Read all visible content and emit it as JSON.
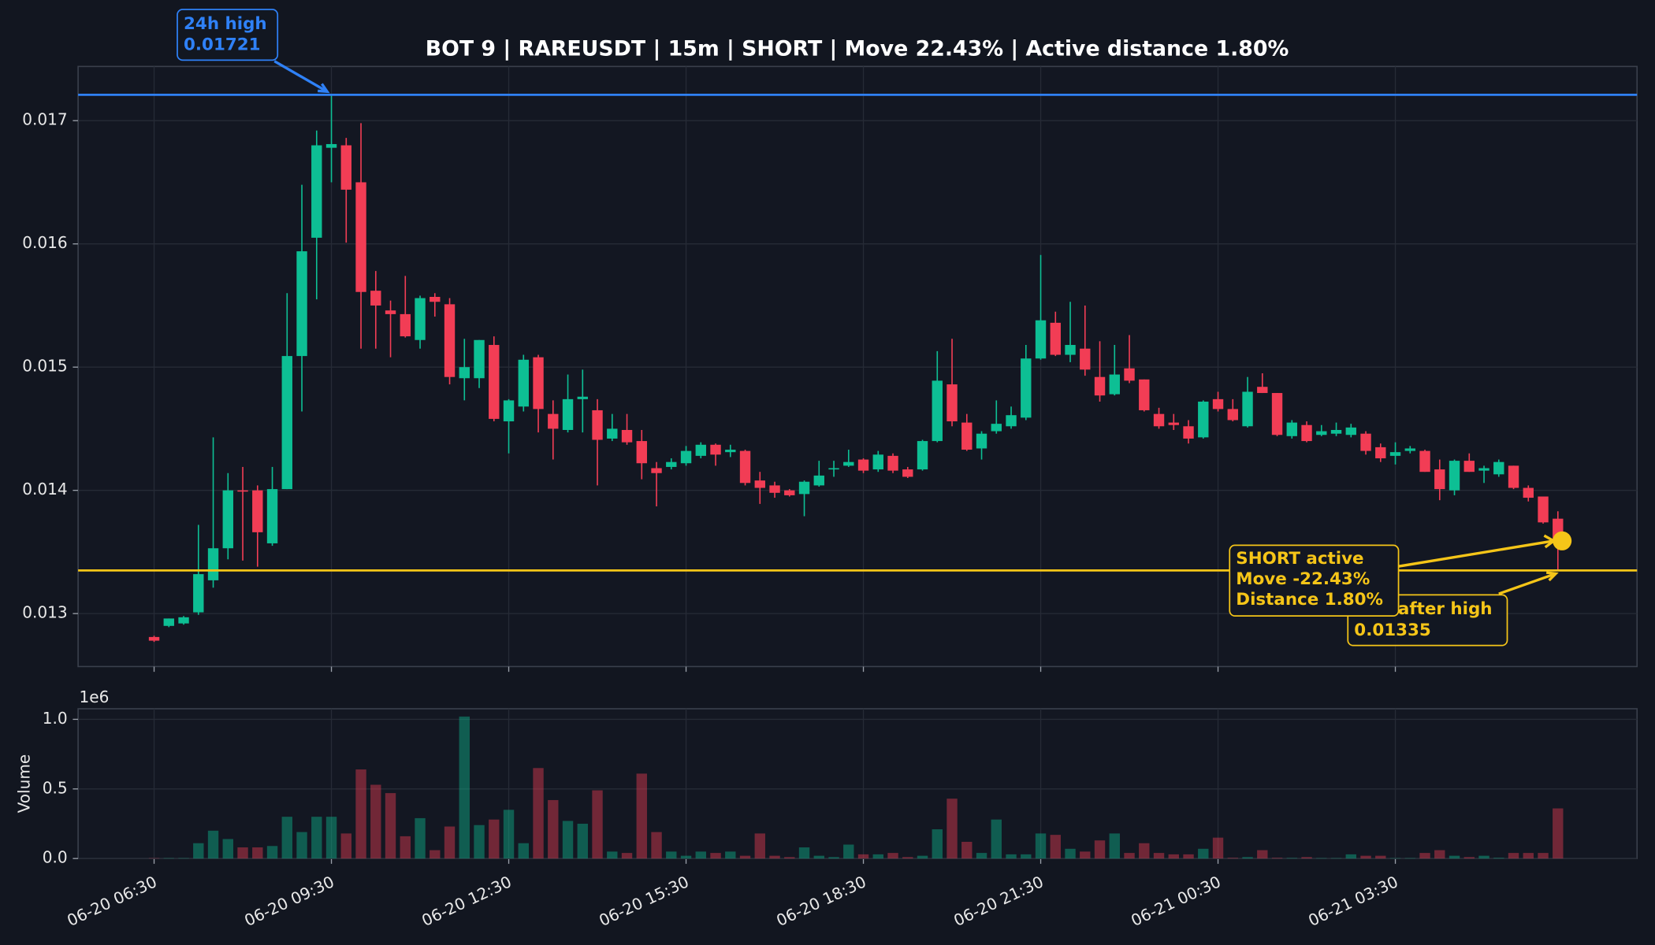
{
  "chart_data": [
    {
      "type": "candlestick",
      "title": "BOT 9 | RAREUSDT | 15m | SHORT | Move 22.43% | Active distance 1.80%",
      "open": [
        0.01281,
        0.0129,
        0.01292,
        0.01301,
        0.01327,
        0.01353,
        0.014,
        0.014,
        0.01357,
        0.01401,
        0.01509,
        0.01605,
        0.01678,
        0.0168,
        0.0165,
        0.01562,
        0.01546,
        0.01543,
        0.01522,
        0.01557,
        0.01551,
        0.01491,
        0.01491,
        0.01518,
        0.01456,
        0.01468,
        0.01508,
        0.01462,
        0.01449,
        0.01474,
        0.01465,
        0.01442,
        0.01449,
        0.0144,
        0.01418,
        0.01419,
        0.01422,
        0.01428,
        0.01437,
        0.01431,
        0.01432,
        0.01408,
        0.01404,
        0.014,
        0.01397,
        0.01404,
        0.01417,
        0.0142,
        0.01425,
        0.01417,
        0.01428,
        0.01417,
        0.01417,
        0.0144,
        0.01486,
        0.01455,
        0.01434,
        0.01448,
        0.01452,
        0.01459,
        0.01507,
        0.01536,
        0.0151,
        0.01515,
        0.01492,
        0.01478,
        0.01499,
        0.0149,
        0.01462,
        0.01455,
        0.01452,
        0.01443,
        0.01474,
        0.01466,
        0.01452,
        0.01484,
        0.01479,
        0.01444,
        0.01453,
        0.01445,
        0.01446,
        0.01445,
        0.01446,
        0.01435,
        0.01428,
        0.01432,
        0.01432,
        0.01417,
        0.014,
        0.01424,
        0.01416,
        0.01413,
        0.0142,
        0.01402,
        0.01395,
        0.01377
      ],
      "high": [
        0.01282,
        0.01296,
        0.01298,
        0.01372,
        0.01443,
        0.01414,
        0.01419,
        0.01404,
        0.01419,
        0.0156,
        0.01648,
        0.01692,
        0.01721,
        0.01686,
        0.01698,
        0.01578,
        0.01554,
        0.01574,
        0.01558,
        0.0156,
        0.01556,
        0.01523,
        0.01522,
        0.01525,
        0.01474,
        0.0151,
        0.0151,
        0.01473,
        0.01494,
        0.01498,
        0.01474,
        0.01462,
        0.01462,
        0.01449,
        0.01423,
        0.01426,
        0.01436,
        0.01439,
        0.01438,
        0.01437,
        0.01433,
        0.01415,
        0.01407,
        0.01401,
        0.01408,
        0.01424,
        0.01424,
        0.01433,
        0.01426,
        0.01432,
        0.0143,
        0.01419,
        0.01441,
        0.01513,
        0.01523,
        0.01462,
        0.01448,
        0.01473,
        0.01468,
        0.01518,
        0.01591,
        0.01545,
        0.01553,
        0.0155,
        0.01521,
        0.01518,
        0.01526,
        0.0149,
        0.01467,
        0.01462,
        0.01457,
        0.01473,
        0.0148,
        0.01474,
        0.01492,
        0.01495,
        0.01479,
        0.01457,
        0.01456,
        0.01453,
        0.01455,
        0.01454,
        0.01448,
        0.01438,
        0.01439,
        0.01436,
        0.01433,
        0.01425,
        0.01425,
        0.0143,
        0.0142,
        0.01425,
        0.0142,
        0.01404,
        0.01395,
        0.01383
      ],
      "low": [
        0.01277,
        0.01289,
        0.01291,
        0.01299,
        0.01321,
        0.01344,
        0.01343,
        0.01338,
        0.01355,
        0.01401,
        0.01464,
        0.01555,
        0.0165,
        0.01601,
        0.01515,
        0.01515,
        0.01508,
        0.01524,
        0.01515,
        0.01541,
        0.01486,
        0.01473,
        0.01483,
        0.01456,
        0.0143,
        0.01464,
        0.01447,
        0.01425,
        0.01447,
        0.01447,
        0.01404,
        0.0144,
        0.01437,
        0.01409,
        0.01387,
        0.01417,
        0.0142,
        0.01426,
        0.0142,
        0.01427,
        0.01404,
        0.01389,
        0.01394,
        0.01395,
        0.01379,
        0.01403,
        0.01411,
        0.01419,
        0.01414,
        0.01415,
        0.01414,
        0.0141,
        0.01416,
        0.01439,
        0.01452,
        0.01432,
        0.01425,
        0.01446,
        0.0145,
        0.01457,
        0.01506,
        0.01509,
        0.01504,
        0.01493,
        0.01472,
        0.01477,
        0.01487,
        0.01464,
        0.0145,
        0.01449,
        0.01438,
        0.01442,
        0.01464,
        0.01456,
        0.01451,
        0.01479,
        0.01444,
        0.01442,
        0.01439,
        0.01444,
        0.01444,
        0.01443,
        0.01429,
        0.01423,
        0.01421,
        0.0143,
        0.01415,
        0.01392,
        0.01396,
        0.01415,
        0.01406,
        0.01411,
        0.01401,
        0.01391,
        0.01373,
        0.01335
      ],
      "close": [
        0.01278,
        0.01296,
        0.01297,
        0.01332,
        0.01353,
        0.014,
        0.01399,
        0.01366,
        0.01401,
        0.01509,
        0.01594,
        0.0168,
        0.01681,
        0.01644,
        0.01561,
        0.0155,
        0.01543,
        0.01525,
        0.01556,
        0.01553,
        0.01492,
        0.015,
        0.01522,
        0.01458,
        0.01473,
        0.01506,
        0.01466,
        0.0145,
        0.01474,
        0.01476,
        0.01441,
        0.0145,
        0.01439,
        0.01422,
        0.01414,
        0.01423,
        0.01432,
        0.01437,
        0.01429,
        0.01433,
        0.01406,
        0.01402,
        0.01398,
        0.01396,
        0.01407,
        0.01412,
        0.01418,
        0.01423,
        0.01416,
        0.01429,
        0.01416,
        0.01411,
        0.0144,
        0.01489,
        0.01456,
        0.01433,
        0.01446,
        0.01454,
        0.01461,
        0.01507,
        0.01538,
        0.0151,
        0.01518,
        0.01498,
        0.01477,
        0.01494,
        0.01489,
        0.01465,
        0.01452,
        0.01453,
        0.01442,
        0.01472,
        0.01466,
        0.01457,
        0.0148,
        0.01479,
        0.01445,
        0.01455,
        0.0144,
        0.01448,
        0.01449,
        0.01451,
        0.01432,
        0.01426,
        0.01431,
        0.01434,
        0.01415,
        0.01401,
        0.01424,
        0.01415,
        0.01418,
        0.01423,
        0.01402,
        0.01394,
        0.01374,
        0.01359
      ],
      "up_color": "#0dbf94",
      "down_color": "#f23d55",
      "ylim": [
        0.01257,
        0.01744
      ],
      "yticks": [
        0.013,
        0.014,
        0.015,
        0.016,
        0.017
      ],
      "grid": true,
      "reference_lines": [
        {
          "name": "24h high",
          "value": 0.01721,
          "color": "#2f81f7"
        },
        {
          "name": "Low after high",
          "value": 0.01335,
          "color": "#f5c518"
        }
      ],
      "current_price": 0.01359,
      "current_color": "#f5c518",
      "status_box": [
        "SHORT active",
        "Move -22.43%",
        "Distance 1.80%"
      ]
    },
    {
      "type": "bar",
      "ylabel": "Volume",
      "offset_label": "1e6",
      "categories": [
        "06-20 06:30",
        null,
        null,
        null,
        null,
        null,
        null,
        null,
        null,
        null,
        null,
        null,
        "06-20 09:30",
        null,
        null,
        null,
        null,
        null,
        null,
        null,
        null,
        null,
        null,
        null,
        "06-20 12:30",
        null,
        null,
        null,
        null,
        null,
        null,
        null,
        null,
        null,
        null,
        null,
        "06-20 15:30",
        null,
        null,
        null,
        null,
        null,
        null,
        null,
        null,
        null,
        null,
        null,
        "06-20 18:30",
        null,
        null,
        null,
        null,
        null,
        null,
        null,
        null,
        null,
        null,
        null,
        "06-20 21:30",
        null,
        null,
        null,
        null,
        null,
        null,
        null,
        null,
        null,
        null,
        null,
        "06-21 00:30",
        null,
        null,
        null,
        null,
        null,
        null,
        null,
        null,
        null,
        null,
        null,
        "06-21 03:30",
        null,
        null,
        null,
        null,
        null,
        null,
        null,
        null,
        null,
        null,
        null
      ],
      "values": [
        0.003,
        0.003,
        0.003,
        0.11,
        0.2,
        0.14,
        0.08,
        0.08,
        0.09,
        0.3,
        0.19,
        0.3,
        0.3,
        0.18,
        0.64,
        0.53,
        0.47,
        0.16,
        0.29,
        0.06,
        0.23,
        1.02,
        0.24,
        0.28,
        0.35,
        0.11,
        0.65,
        0.42,
        0.27,
        0.25,
        0.49,
        0.05,
        0.04,
        0.61,
        0.19,
        0.05,
        0.02,
        0.05,
        0.04,
        0.05,
        0.02,
        0.18,
        0.02,
        0.01,
        0.08,
        0.02,
        0.01,
        0.1,
        0.03,
        0.03,
        0.04,
        0.01,
        0.02,
        0.21,
        0.43,
        0.12,
        0.04,
        0.28,
        0.03,
        0.03,
        0.18,
        0.17,
        0.07,
        0.05,
        0.13,
        0.18,
        0.04,
        0.11,
        0.04,
        0.03,
        0.03,
        0.07,
        0.15,
        0.005,
        0.01,
        0.06,
        0.005,
        0.004,
        0.01,
        0.003,
        0.003,
        0.03,
        0.02,
        0.02,
        0.003,
        0.003,
        0.04,
        0.06,
        0.02,
        0.01,
        0.02,
        0.005,
        0.04,
        0.04,
        0.04,
        0.36
      ],
      "ylim": [
        0,
        1.076
      ],
      "yticks": [
        {
          "value": 0,
          "label": "0.0"
        },
        0.5,
        {
          "value": 1,
          "label": "1.0"
        }
      ],
      "grid": true
    }
  ]
}
